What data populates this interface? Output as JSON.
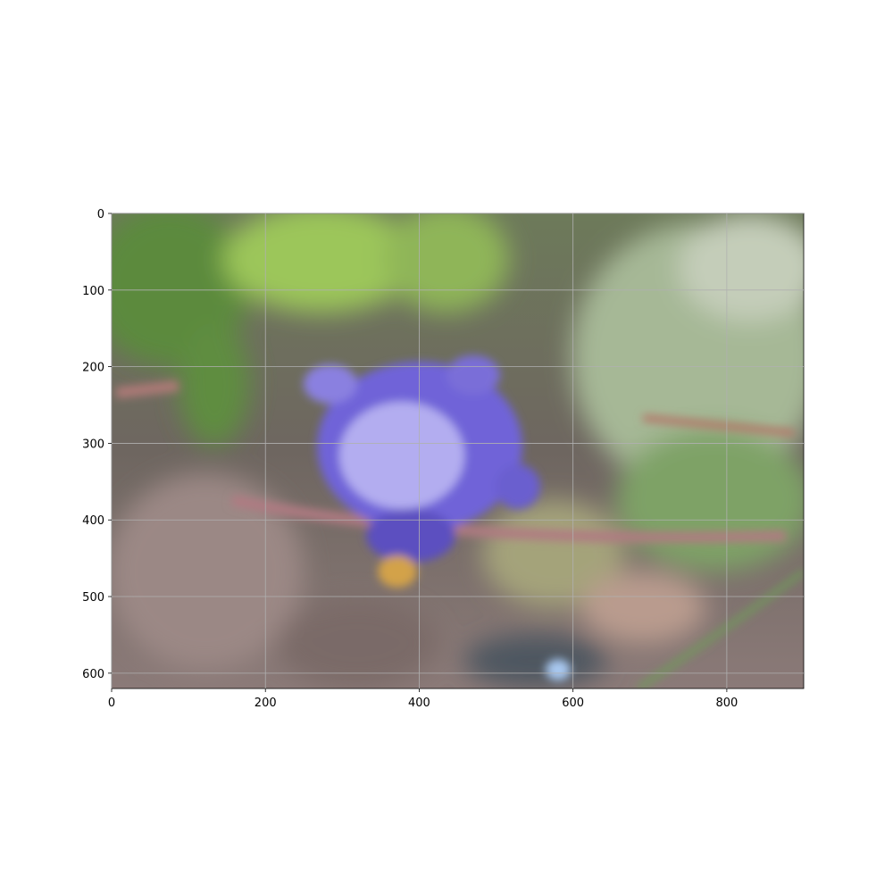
{
  "chart_data": {
    "type": "image",
    "xlim": [
      0,
      900
    ],
    "ylim": [
      620,
      0
    ],
    "xticks": [
      0,
      200,
      400,
      600,
      800
    ],
    "yticks": [
      0,
      100,
      200,
      300,
      400,
      500,
      600
    ],
    "grid": true
  }
}
